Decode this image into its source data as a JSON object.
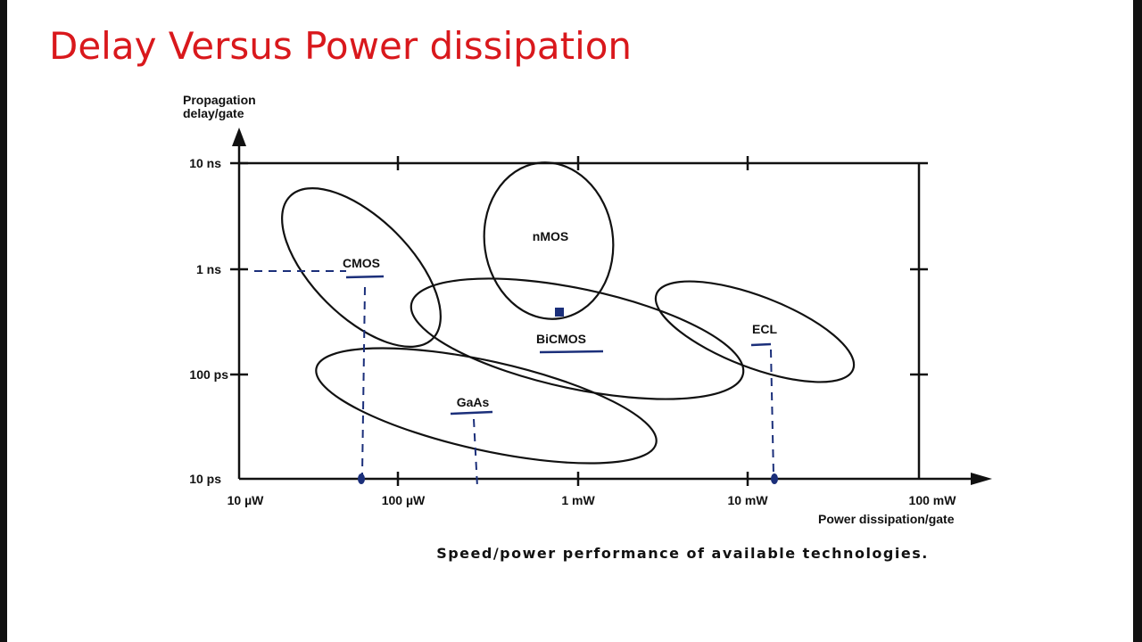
{
  "title": "Delay Versus Power dissipation",
  "figure": {
    "y_axis_label": [
      "Propagation",
      "delay/gate"
    ],
    "y_ticks": [
      "10 ns",
      "1 ns",
      "100 ps",
      "10 ps"
    ],
    "x_ticks": [
      "10 µW",
      "100 µW",
      "1 mW",
      "10 mW",
      "100 mW"
    ],
    "x_axis_label": "Power dissipation/gate",
    "regions": [
      "CMOS",
      "nMOS",
      "BiCMOS",
      "ECL",
      "GaAs"
    ],
    "caption": "Speed/power performance of available technologies."
  }
}
